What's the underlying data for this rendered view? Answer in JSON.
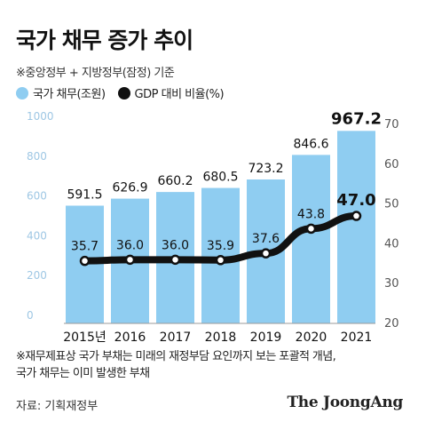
{
  "header": {
    "title": "국가 채무 증가 추이",
    "subtitle": "※중앙정부 + 지방정부(잠정) 기준"
  },
  "legend": {
    "bar_label": "국가 채무(조원)",
    "line_label": "GDP 대비 비율(%)"
  },
  "colors": {
    "bar": "#8fcdf1",
    "line": "#111111",
    "axis_text": "#9ec7e4",
    "right_axis_text": "#555555"
  },
  "chart_data": {
    "type": "bar",
    "categories": [
      "2015년",
      "2016",
      "2017",
      "2018",
      "2019",
      "2020",
      "2021"
    ],
    "series": [
      {
        "name": "국가 채무(조원)",
        "type": "bar",
        "axis": "left",
        "values": [
          591.5,
          626.9,
          660.2,
          680.5,
          723.2,
          846.6,
          967.2
        ],
        "labels": [
          "591.5",
          "626.9",
          "660.2",
          "680.5",
          "723.2",
          "846.6",
          "967.2"
        ]
      },
      {
        "name": "GDP 대비 비율(%)",
        "type": "line",
        "axis": "right",
        "values": [
          35.7,
          36.0,
          36.0,
          35.9,
          37.6,
          43.8,
          47.0
        ],
        "labels": [
          "35.7",
          "36.0",
          "36.0",
          "35.9",
          "37.6",
          "43.8",
          "47.0"
        ]
      }
    ],
    "left_axis": {
      "ylim": [
        0,
        1000
      ],
      "ticks": [
        "0",
        "200",
        "400",
        "600",
        "800",
        "1000"
      ]
    },
    "right_axis": {
      "ylim": [
        20,
        70
      ],
      "ticks": [
        "20",
        "30",
        "40",
        "50",
        "60",
        "70"
      ]
    },
    "grid": false,
    "legend_position": "top-left"
  },
  "footnote": {
    "line1": "※재무제표상 국가 부채는 미래의 재정부담 요인까지 보는 포괄적 개념,",
    "line2": "국가 채무는 이미 발생한 부채"
  },
  "source": "자료: 기획재정부",
  "brand": "The JoongAng"
}
